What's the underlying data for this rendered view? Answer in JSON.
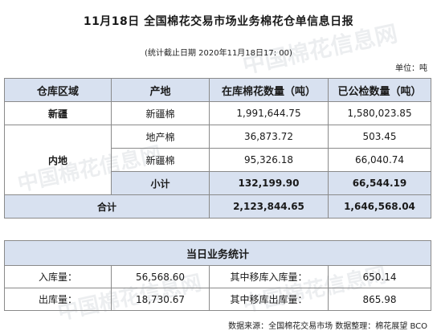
{
  "title": "11月18日 全国棉花交易市场业务棉花仓单信息日报",
  "subtitle": "(统计截止日期 2020年11月18日17: 00)",
  "unit": "单位：吨",
  "table": {
    "headers": [
      "仓库区域",
      "产地",
      "在库棉花数量（吨）",
      "已公检数量（吨）"
    ],
    "xinjiang": {
      "region": "新疆",
      "origin": "新疆棉",
      "in_stock": "1,991,644.75",
      "inspected": "1,580,023.85"
    },
    "neidi": {
      "region": "内地",
      "rows": [
        {
          "origin": "地产棉",
          "in_stock": "36,873.72",
          "inspected": "503.45"
        },
        {
          "origin": "新疆棉",
          "in_stock": "95,326.18",
          "inspected": "66,040.74"
        }
      ],
      "subtotal": {
        "label": "小计",
        "in_stock": "132,199.90",
        "inspected": "66,544.19"
      }
    },
    "total": {
      "label": "合计",
      "in_stock": "2,123,844.65",
      "inspected": "1,646,568.04"
    }
  },
  "daily": {
    "title": "当日业务统计",
    "rows": [
      {
        "label": "入库量：",
        "value": "56,568.60",
        "label2": "其中移库入库量：",
        "value2": "650.14"
      },
      {
        "label": "出库量：",
        "value": "18,730.67",
        "label2": "其中移库出库量：",
        "value2": "865.98"
      }
    ]
  },
  "source": "数据来源：全国棉花交易市场 数据整理：棉花展望 BCO",
  "watermark": "中国棉花信息网"
}
